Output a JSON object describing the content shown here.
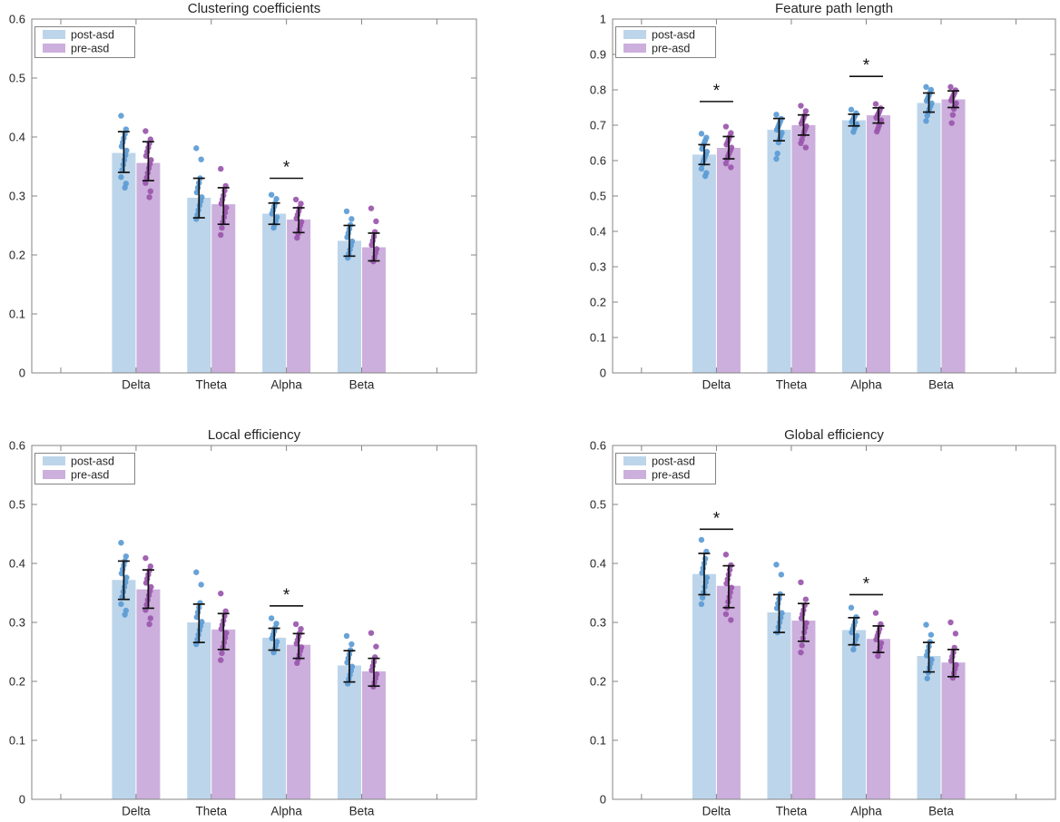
{
  "page": {
    "background": "#ffffff"
  },
  "colors": {
    "post_fill": "#bdd5ea",
    "pre_fill": "#ccafdc",
    "post_dot": "#5b9bd5",
    "pre_dot": "#9a56ad",
    "error_bar": "#111111",
    "significance": "#111111",
    "frame": "#848484",
    "text": "#262626",
    "legend_border": "#848484",
    "legend_bg": "#ffffff"
  },
  "legend": {
    "items": [
      {
        "label": "post-asd"
      },
      {
        "label": "pre-asd"
      }
    ],
    "position": "top-left-inside"
  },
  "chart_data": [
    {
      "id": "clustering-coefficients",
      "type": "bar",
      "title": "Clustering coefficients",
      "position": "top-left",
      "categories": [
        "Delta",
        "Theta",
        "Alpha",
        "Beta"
      ],
      "xlabel": "",
      "ylabel": "",
      "ylim": [
        0,
        0.6
      ],
      "ytick_step": 0.1,
      "grid": false,
      "legend_position": "top-left-inside",
      "series": [
        {
          "name": "post-asd",
          "values": [
            0.373,
            0.297,
            0.27,
            0.224
          ],
          "err_low": [
            0.34,
            0.263,
            0.252,
            0.198
          ],
          "err_high": [
            0.409,
            0.33,
            0.288,
            0.25
          ],
          "points": [
            [
              0.436,
              0.413,
              0.405,
              0.398,
              0.391,
              0.384,
              0.377,
              0.369,
              0.361,
              0.353,
              0.344,
              0.332,
              0.321,
              0.314
            ],
            [
              0.381,
              0.362,
              0.33,
              0.322,
              0.314,
              0.306,
              0.298,
              0.291,
              0.284,
              0.276,
              0.268,
              0.261
            ],
            [
              0.302,
              0.295,
              0.288,
              0.282,
              0.276,
              0.27,
              0.264,
              0.258,
              0.252,
              0.246
            ],
            [
              0.274,
              0.261,
              0.251,
              0.244,
              0.237,
              0.23,
              0.223,
              0.216,
              0.209,
              0.202,
              0.195
            ]
          ]
        },
        {
          "name": "pre-asd",
          "values": [
            0.356,
            0.286,
            0.26,
            0.213
          ],
          "err_low": [
            0.326,
            0.252,
            0.238,
            0.19
          ],
          "err_high": [
            0.392,
            0.314,
            0.28,
            0.237
          ],
          "points": [
            [
              0.41,
              0.396,
              0.389,
              0.382,
              0.375,
              0.368,
              0.361,
              0.354,
              0.347,
              0.339,
              0.331,
              0.322,
              0.308,
              0.298
            ],
            [
              0.346,
              0.317,
              0.309,
              0.301,
              0.294,
              0.287,
              0.28,
              0.272,
              0.264,
              0.256,
              0.246,
              0.234
            ],
            [
              0.294,
              0.287,
              0.28,
              0.274,
              0.268,
              0.262,
              0.256,
              0.25,
              0.243,
              0.236,
              0.229
            ],
            [
              0.279,
              0.257,
              0.239,
              0.231,
              0.224,
              0.217,
              0.21,
              0.203,
              0.196,
              0.189
            ]
          ]
        }
      ],
      "significance": [
        {
          "category": "Alpha",
          "label": "*",
          "y": 0.33
        }
      ]
    },
    {
      "id": "feature-path-length",
      "type": "bar",
      "title": "Feature path length",
      "position": "top-right",
      "categories": [
        "Delta",
        "Theta",
        "Alpha",
        "Beta"
      ],
      "xlabel": "",
      "ylabel": "",
      "ylim": [
        0,
        1
      ],
      "ytick_step": 0.1,
      "grid": false,
      "legend_position": "top-left-inside",
      "series": [
        {
          "name": "post-asd",
          "values": [
            0.617,
            0.687,
            0.714,
            0.763
          ],
          "err_low": [
            0.589,
            0.656,
            0.698,
            0.737
          ],
          "err_high": [
            0.645,
            0.719,
            0.731,
            0.791
          ],
          "points": [
            [
              0.676,
              0.665,
              0.657,
              0.649,
              0.641,
              0.633,
              0.625,
              0.617,
              0.609,
              0.6,
              0.59,
              0.577,
              0.565,
              0.556
            ],
            [
              0.73,
              0.718,
              0.71,
              0.702,
              0.694,
              0.687,
              0.679,
              0.671,
              0.662,
              0.651,
              0.62,
              0.605
            ],
            [
              0.744,
              0.734,
              0.727,
              0.721,
              0.715,
              0.709,
              0.703,
              0.697,
              0.69,
              0.681
            ],
            [
              0.808,
              0.8,
              0.791,
              0.783,
              0.776,
              0.769,
              0.762,
              0.754,
              0.746,
              0.737,
              0.727,
              0.712
            ]
          ]
        },
        {
          "name": "pre-asd",
          "values": [
            0.636,
            0.7,
            0.728,
            0.773
          ],
          "err_low": [
            0.605,
            0.672,
            0.706,
            0.75
          ],
          "err_high": [
            0.668,
            0.729,
            0.749,
            0.797
          ],
          "points": [
            [
              0.696,
              0.678,
              0.668,
              0.66,
              0.652,
              0.645,
              0.637,
              0.629,
              0.621,
              0.613,
              0.604,
              0.592,
              0.581
            ],
            [
              0.755,
              0.74,
              0.728,
              0.72,
              0.712,
              0.705,
              0.697,
              0.689,
              0.681,
              0.671,
              0.659,
              0.649,
              0.637
            ],
            [
              0.76,
              0.748,
              0.74,
              0.733,
              0.727,
              0.721,
              0.714,
              0.707,
              0.699,
              0.69,
              0.682
            ],
            [
              0.808,
              0.799,
              0.791,
              0.784,
              0.777,
              0.77,
              0.762,
              0.754,
              0.746,
              0.729,
              0.706
            ]
          ]
        }
      ],
      "significance": [
        {
          "category": "Delta",
          "label": "*",
          "y": 0.767
        },
        {
          "category": "Alpha",
          "label": "*",
          "y": 0.838
        }
      ]
    },
    {
      "id": "local-efficiency",
      "type": "bar",
      "title": "Local efficiency",
      "position": "bottom-left",
      "categories": [
        "Delta",
        "Theta",
        "Alpha",
        "Beta"
      ],
      "xlabel": "",
      "ylabel": "",
      "ylim": [
        0,
        0.6
      ],
      "ytick_step": 0.1,
      "grid": false,
      "legend_position": "top-left-inside",
      "series": [
        {
          "name": "post-asd",
          "values": [
            0.372,
            0.3,
            0.274,
            0.227
          ],
          "err_low": [
            0.339,
            0.266,
            0.253,
            0.199
          ],
          "err_high": [
            0.404,
            0.331,
            0.29,
            0.252
          ],
          "points": [
            [
              0.435,
              0.412,
              0.404,
              0.397,
              0.39,
              0.383,
              0.376,
              0.368,
              0.36,
              0.352,
              0.343,
              0.331,
              0.32,
              0.313
            ],
            [
              0.385,
              0.364,
              0.333,
              0.325,
              0.317,
              0.309,
              0.301,
              0.294,
              0.287,
              0.279,
              0.271,
              0.263
            ],
            [
              0.307,
              0.298,
              0.291,
              0.285,
              0.279,
              0.273,
              0.267,
              0.261,
              0.255,
              0.249
            ],
            [
              0.277,
              0.263,
              0.253,
              0.246,
              0.239,
              0.232,
              0.225,
              0.218,
              0.211,
              0.204,
              0.196
            ]
          ]
        },
        {
          "name": "pre-asd",
          "values": [
            0.356,
            0.288,
            0.262,
            0.217
          ],
          "err_low": [
            0.324,
            0.254,
            0.239,
            0.192
          ],
          "err_high": [
            0.389,
            0.315,
            0.281,
            0.239
          ],
          "points": [
            [
              0.409,
              0.395,
              0.388,
              0.381,
              0.374,
              0.367,
              0.36,
              0.353,
              0.346,
              0.338,
              0.33,
              0.321,
              0.307,
              0.297
            ],
            [
              0.349,
              0.319,
              0.311,
              0.303,
              0.296,
              0.289,
              0.282,
              0.274,
              0.266,
              0.258,
              0.248,
              0.236
            ],
            [
              0.297,
              0.289,
              0.282,
              0.276,
              0.27,
              0.264,
              0.258,
              0.252,
              0.245,
              0.238,
              0.231
            ],
            [
              0.282,
              0.259,
              0.241,
              0.233,
              0.226,
              0.219,
              0.212,
              0.205,
              0.198,
              0.191
            ]
          ]
        }
      ],
      "significance": [
        {
          "category": "Alpha",
          "label": "*",
          "y": 0.328
        }
      ]
    },
    {
      "id": "global-efficiency",
      "type": "bar",
      "title": "Global efficiency",
      "position": "bottom-right",
      "categories": [
        "Delta",
        "Theta",
        "Alpha",
        "Beta"
      ],
      "xlabel": "",
      "ylabel": "",
      "ylim": [
        0,
        0.6
      ],
      "ytick_step": 0.1,
      "grid": false,
      "legend_position": "top-left-inside",
      "series": [
        {
          "name": "post-asd",
          "values": [
            0.382,
            0.317,
            0.287,
            0.243
          ],
          "err_low": [
            0.347,
            0.283,
            0.262,
            0.216
          ],
          "err_high": [
            0.417,
            0.347,
            0.308,
            0.266
          ],
          "points": [
            [
              0.44,
              0.42,
              0.408,
              0.4,
              0.392,
              0.384,
              0.376,
              0.368,
              0.36,
              0.351,
              0.342,
              0.331
            ],
            [
              0.398,
              0.381,
              0.348,
              0.34,
              0.332,
              0.324,
              0.316,
              0.308,
              0.3,
              0.292,
              0.283
            ],
            [
              0.325,
              0.309,
              0.301,
              0.295,
              0.289,
              0.283,
              0.277,
              0.271,
              0.263,
              0.254
            ],
            [
              0.296,
              0.279,
              0.267,
              0.259,
              0.251,
              0.244,
              0.237,
              0.23,
              0.223,
              0.215,
              0.205
            ]
          ]
        },
        {
          "name": "pre-asd",
          "values": [
            0.362,
            0.303,
            0.272,
            0.232
          ],
          "err_low": [
            0.325,
            0.268,
            0.249,
            0.208
          ],
          "err_high": [
            0.396,
            0.332,
            0.294,
            0.254
          ],
          "points": [
            [
              0.415,
              0.397,
              0.389,
              0.381,
              0.373,
              0.366,
              0.359,
              0.351,
              0.343,
              0.335,
              0.325,
              0.314,
              0.304
            ],
            [
              0.368,
              0.339,
              0.329,
              0.321,
              0.314,
              0.307,
              0.299,
              0.291,
              0.283,
              0.273,
              0.261,
              0.249
            ],
            [
              0.316,
              0.297,
              0.289,
              0.283,
              0.277,
              0.271,
              0.265,
              0.258,
              0.251,
              0.243
            ],
            [
              0.3,
              0.281,
              0.257,
              0.249,
              0.242,
              0.235,
              0.228,
              0.221,
              0.214,
              0.206
            ]
          ]
        }
      ],
      "significance": [
        {
          "category": "Delta",
          "label": "*",
          "y": 0.458
        },
        {
          "category": "Alpha",
          "label": "*",
          "y": 0.347
        }
      ]
    }
  ]
}
